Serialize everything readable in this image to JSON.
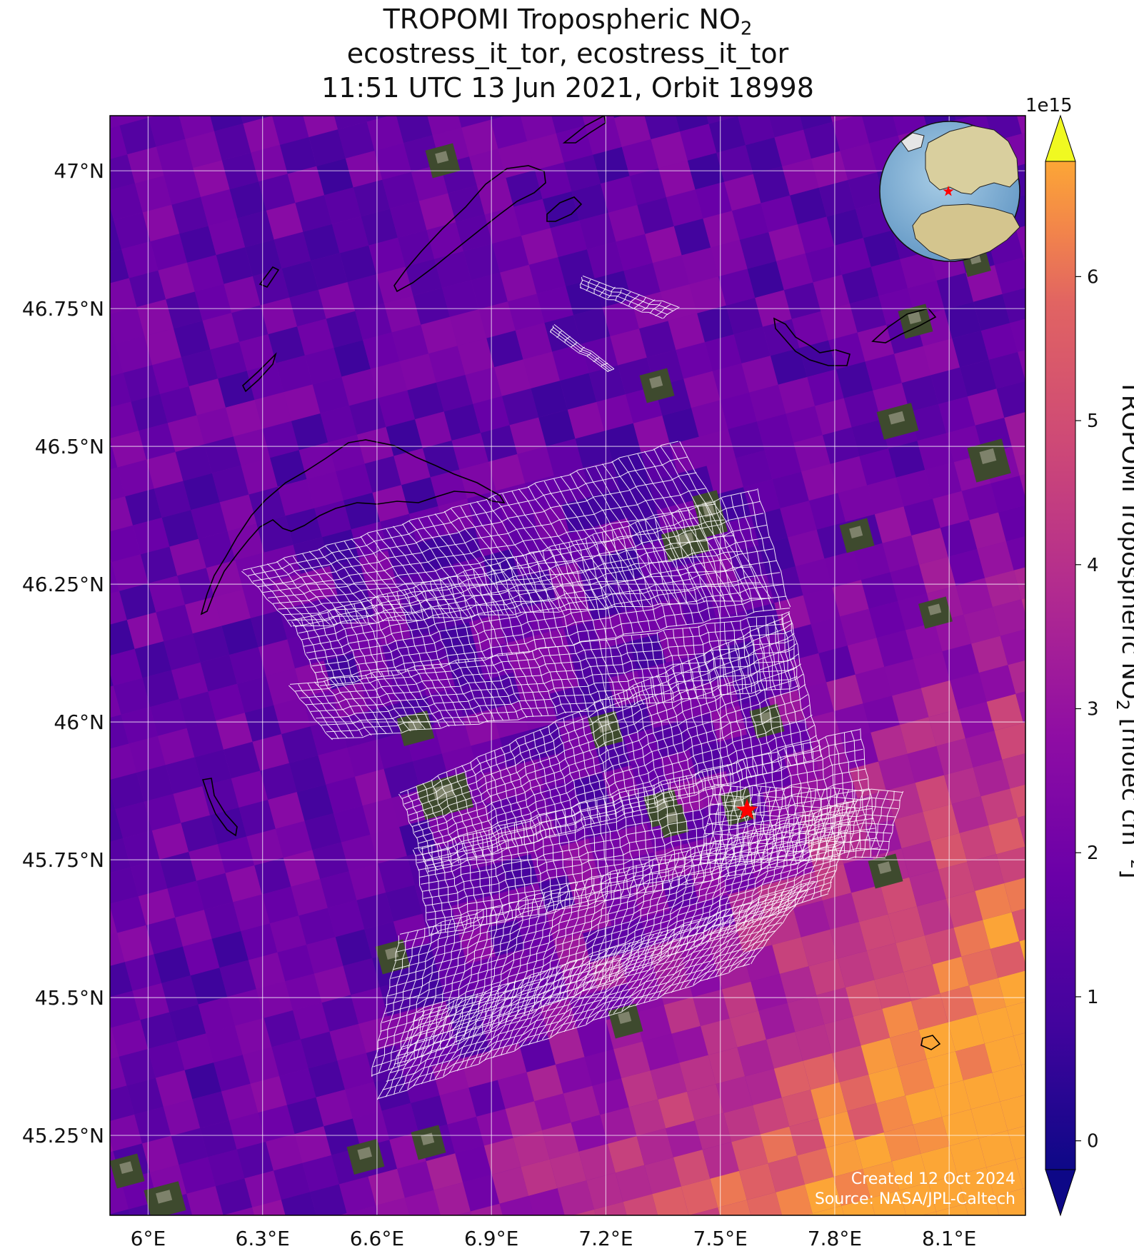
{
  "title": {
    "line1_main": "TROPOMI Tropospheric NO",
    "line1_sub": "2",
    "line2": "ecostress_it_tor, ecostress_it_tor",
    "line3": "11:51 UTC 13 Jun 2021, Orbit 18998"
  },
  "axes": {
    "x_ticks": [
      "6°E",
      "6.3°E",
      "6.6°E",
      "6.9°E",
      "7.2°E",
      "7.5°E",
      "7.8°E",
      "8.1°E"
    ],
    "y_ticks": [
      "47°N",
      "46.75°N",
      "46.5°N",
      "46.25°N",
      "46°N",
      "45.75°N",
      "45.5°N",
      "45.25°N"
    ],
    "x_range": [
      5.9,
      8.3
    ],
    "y_range": [
      45.105,
      47.1
    ],
    "gridlines": true
  },
  "colorbar": {
    "colormap": "plasma",
    "label_main": "TROPOMI Tropospheric NO",
    "label_sub": "2",
    "label_unit": " [molec cm",
    "label_sup": "−2",
    "label_close": "]",
    "exponent": "1e15",
    "ticks": [
      "0",
      "1",
      "2",
      "3",
      "4",
      "5",
      "6"
    ],
    "range": [
      -0.2,
      6.8
    ],
    "extend": "both"
  },
  "site_marker": {
    "symbol": "star",
    "lon": 7.57,
    "lat": 45.84,
    "color": "#ff0000"
  },
  "inset_globe": {
    "description_icon": "globe-icon",
    "marker_color": "#ff0000"
  },
  "footer": {
    "created": "Created 12 Oct 2024",
    "source": "Source: NASA/JPL-Caltech"
  },
  "colors": {
    "ecostress_grid": "#ffffff",
    "boundary_lines": "#000000",
    "marker": "#ff0000"
  }
}
